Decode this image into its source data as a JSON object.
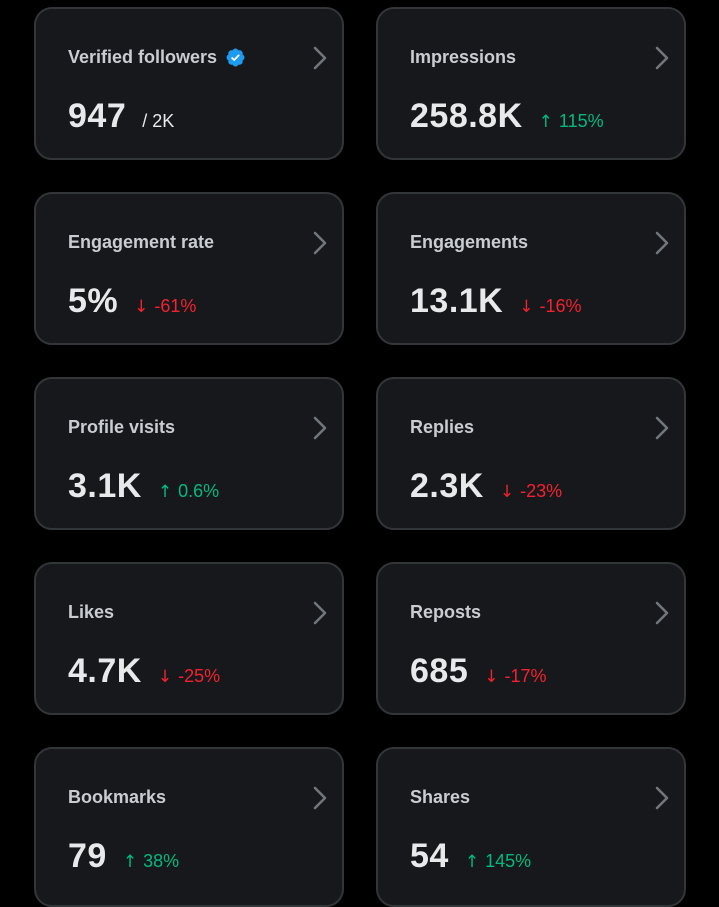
{
  "colors": {
    "background": "#000000",
    "card": "#16181c",
    "border": "#333639",
    "positive": "#00ba7c",
    "negative": "#f4212e",
    "verified": "#1d9bf0"
  },
  "cards": [
    {
      "title": "Verified followers",
      "value": "947",
      "suffix": "/ 2K",
      "icon": "verified-badge-icon"
    },
    {
      "title": "Impressions",
      "value": "258.8K",
      "arrow": "↑",
      "change": "115%",
      "direction": "up"
    },
    {
      "title": "Engagement rate",
      "value": "5%",
      "arrow": "↓",
      "change": "-61%",
      "direction": "down"
    },
    {
      "title": "Engagements",
      "value": "13.1K",
      "arrow": "↓",
      "change": "-16%",
      "direction": "down"
    },
    {
      "title": "Profile visits",
      "value": "3.1K",
      "arrow": "↑",
      "change": "0.6%",
      "direction": "up"
    },
    {
      "title": "Replies",
      "value": "2.3K",
      "arrow": "↓",
      "change": "-23%",
      "direction": "down"
    },
    {
      "title": "Likes",
      "value": "4.7K",
      "arrow": "↓",
      "change": "-25%",
      "direction": "down"
    },
    {
      "title": "Reposts",
      "value": "685",
      "arrow": "↓",
      "change": "-17%",
      "direction": "down"
    },
    {
      "title": "Bookmarks",
      "value": "79",
      "arrow": "↑",
      "change": "38%",
      "direction": "up"
    },
    {
      "title": "Shares",
      "value": "54",
      "arrow": "↑",
      "change": "145%",
      "direction": "up"
    }
  ]
}
